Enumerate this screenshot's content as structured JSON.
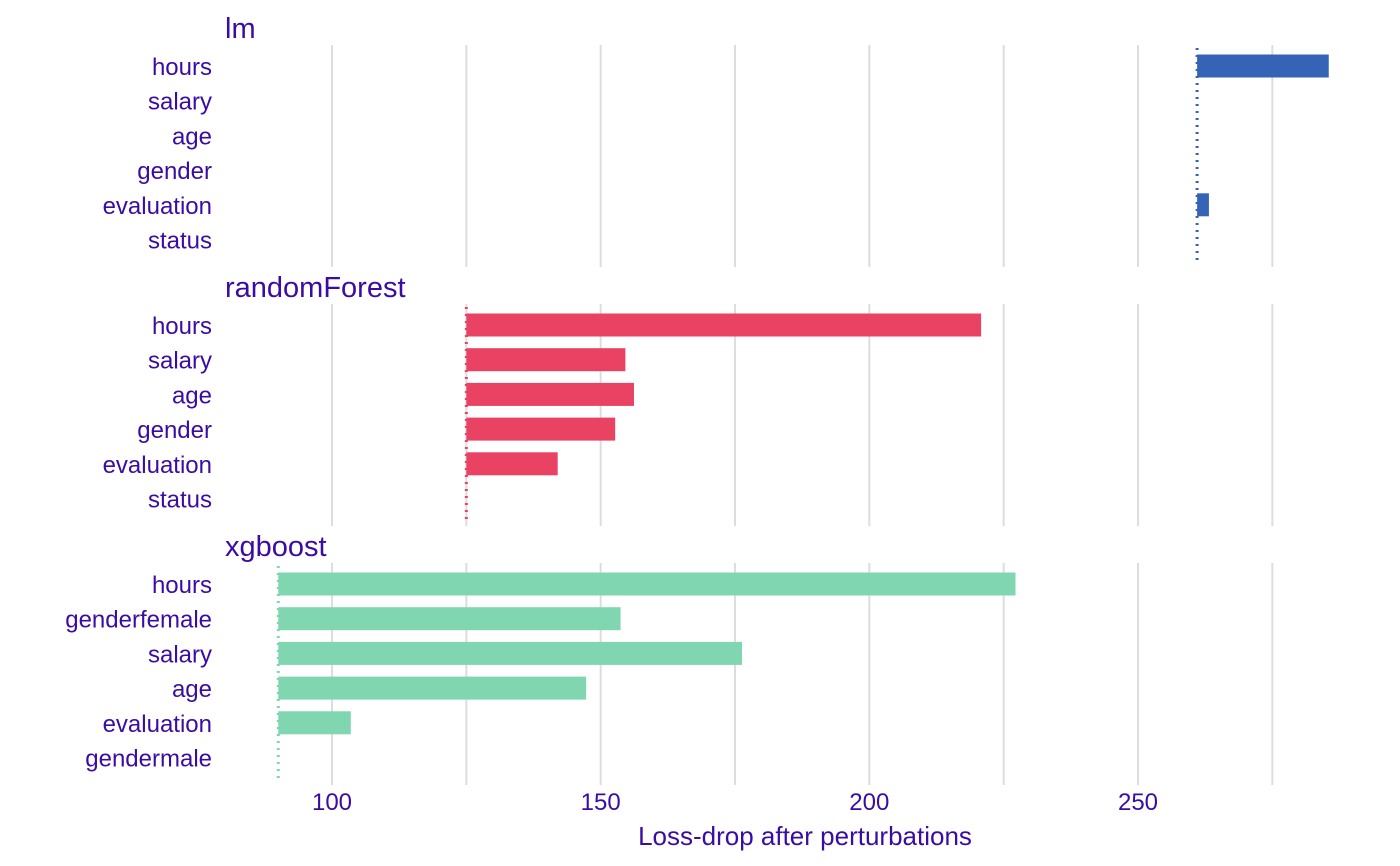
{
  "chart_data": {
    "type": "bar",
    "xlabel": "Loss-drop after perturbations",
    "xlim": [
      80,
      290
    ],
    "x_ticks": [
      100,
      150,
      200,
      250
    ],
    "grid": true,
    "legend": "none",
    "colors": {
      "text": "#3a0ca3",
      "grid": "#dddddd"
    },
    "panels": [
      {
        "title": "lm",
        "color": "#3563b5",
        "baseline": 261,
        "categories": [
          "hours",
          "salary",
          "age",
          "gender",
          "evaluation",
          "status"
        ],
        "values": [
          285.5,
          261,
          261,
          261,
          263.2,
          261
        ]
      },
      {
        "title": "randomForest",
        "color": "#ea4262",
        "baseline": 125,
        "categories": [
          "hours",
          "salary",
          "age",
          "gender",
          "evaluation",
          "status"
        ],
        "values": [
          220.8,
          154.6,
          156.2,
          152.7,
          142.0,
          125
        ]
      },
      {
        "title": "xgboost",
        "color": "#7fd6b0",
        "baseline": 90,
        "categories": [
          "hours",
          "genderfemale",
          "salary",
          "age",
          "evaluation",
          "gendermale"
        ],
        "values": [
          227.2,
          153.7,
          176.3,
          147.3,
          103.5,
          90
        ]
      }
    ]
  }
}
